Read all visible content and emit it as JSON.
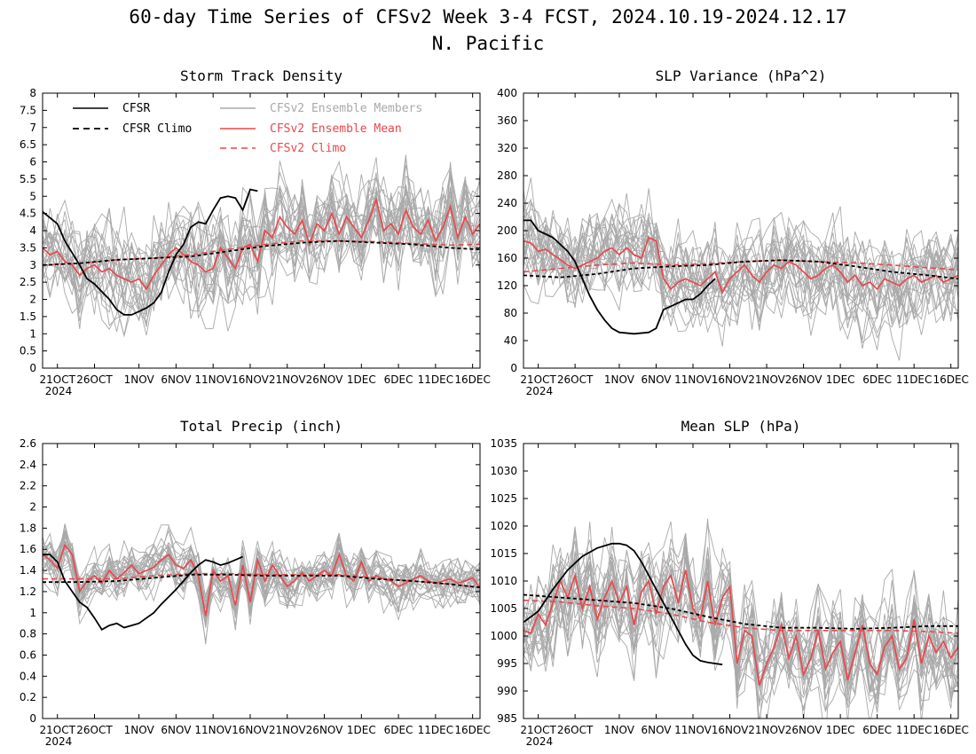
{
  "figure": {
    "title_line1": "60-day Time Series of CFSv2 Week 3-4 FCST, 2024.10.19-2024.12.17",
    "title_line2": "N. Pacific"
  },
  "legend": {
    "cfsr": "CFSR",
    "cfsr_climo": "CFSR Climo",
    "members": "CFSv2 Ensemble Members",
    "ens_mean": "CFSv2 Ensemble Mean",
    "cfsv2_climo": "CFSv2 Climo"
  },
  "colors": {
    "cfsr": "#000000",
    "cfsr_climo": "#000000",
    "members": "#a9a9a9",
    "ens_mean": "#e8484d",
    "cfsv2_climo": "#e8484d"
  },
  "x_axis": {
    "tick_day": [
      2,
      7,
      13,
      18,
      23,
      28,
      33,
      38,
      43,
      48,
      53,
      58
    ],
    "tick_labels": [
      "21OCT",
      "26OCT",
      "1NOV",
      "6NOV",
      "11NOV",
      "16NOV",
      "21NOV",
      "26NOV",
      "1DEC",
      "6DEC",
      "11DEC",
      "16DEC"
    ],
    "year_label": "2024",
    "range": [
      0,
      59
    ]
  },
  "chart_data": [
    {
      "type": "line",
      "title": "Storm Track Density",
      "ylim": [
        0,
        8
      ],
      "yticks": [
        0,
        0.5,
        1,
        1.5,
        2,
        2.5,
        3,
        3.5,
        4,
        4.5,
        5,
        5.5,
        6,
        6.5,
        7,
        7.5,
        8
      ],
      "cfsr": [
        [
          0,
          4.55
        ],
        [
          2,
          4.2
        ],
        [
          3,
          3.7
        ],
        [
          5,
          3.0
        ],
        [
          6,
          2.6
        ],
        [
          7,
          2.45
        ],
        [
          9,
          2.0
        ],
        [
          10,
          1.7
        ],
        [
          11,
          1.55
        ],
        [
          12,
          1.55
        ],
        [
          14,
          1.75
        ],
        [
          15,
          1.9
        ],
        [
          16,
          2.2
        ],
        [
          17,
          2.8
        ],
        [
          18,
          3.3
        ],
        [
          19,
          3.6
        ],
        [
          20,
          4.1
        ],
        [
          21,
          4.25
        ],
        [
          22,
          4.2
        ],
        [
          23,
          4.6
        ],
        [
          24,
          4.95
        ],
        [
          25,
          5.0
        ],
        [
          26,
          4.95
        ],
        [
          27,
          4.6
        ],
        [
          28,
          5.2
        ],
        [
          29,
          5.15
        ]
      ],
      "cfsr_climo": [
        [
          0,
          3.0
        ],
        [
          5,
          3.05
        ],
        [
          10,
          3.15
        ],
        [
          15,
          3.2
        ],
        [
          20,
          3.25
        ],
        [
          25,
          3.4
        ],
        [
          30,
          3.55
        ],
        [
          35,
          3.65
        ],
        [
          40,
          3.7
        ],
        [
          45,
          3.65
        ],
        [
          50,
          3.6
        ],
        [
          55,
          3.5
        ],
        [
          59,
          3.45
        ]
      ],
      "cfsv2_climo": [
        [
          0,
          3.0
        ],
        [
          5,
          3.05
        ],
        [
          10,
          3.15
        ],
        [
          15,
          3.2
        ],
        [
          20,
          3.3
        ],
        [
          25,
          3.45
        ],
        [
          30,
          3.6
        ],
        [
          35,
          3.7
        ],
        [
          40,
          3.7
        ],
        [
          45,
          3.68
        ],
        [
          50,
          3.62
        ],
        [
          55,
          3.58
        ],
        [
          59,
          3.6
        ]
      ],
      "ens_mean": [
        3.5,
        3.3,
        3.4,
        3.1,
        3.0,
        2.7,
        2.9,
        3.0,
        2.8,
        2.9,
        2.7,
        2.6,
        2.5,
        2.6,
        2.3,
        2.7,
        3.0,
        3.3,
        3.5,
        3.3,
        3.1,
        3.0,
        2.8,
        2.9,
        3.5,
        3.2,
        2.9,
        3.5,
        3.6,
        3.1,
        4.0,
        3.8,
        4.4,
        4.1,
        3.9,
        4.3,
        3.6,
        4.2,
        4.0,
        4.5,
        3.9,
        4.4,
        4.1,
        3.8,
        4.3,
        4.9,
        4.0,
        4.2,
        3.9,
        4.6,
        4.1,
        3.9,
        4.3,
        3.7,
        4.1,
        4.7,
        3.8,
        4.4,
        3.9,
        4.2
      ],
      "members": {
        "count": 24,
        "spread": 0.85,
        "seed": 11
      }
    },
    {
      "type": "line",
      "title": "SLP Variance (hPa^2)",
      "ylim": [
        0,
        400
      ],
      "yticks": [
        0,
        40,
        80,
        120,
        160,
        200,
        240,
        280,
        320,
        360,
        400
      ],
      "cfsr": [
        [
          0,
          215
        ],
        [
          1,
          215
        ],
        [
          2,
          200
        ],
        [
          4,
          190
        ],
        [
          5,
          180
        ],
        [
          6,
          170
        ],
        [
          7,
          155
        ],
        [
          8,
          130
        ],
        [
          9,
          105
        ],
        [
          10,
          85
        ],
        [
          11,
          70
        ],
        [
          12,
          58
        ],
        [
          13,
          52
        ],
        [
          15,
          50
        ],
        [
          17,
          52
        ],
        [
          18,
          58
        ],
        [
          19,
          85
        ],
        [
          20,
          90
        ],
        [
          21,
          95
        ],
        [
          22,
          100
        ],
        [
          23,
          100
        ],
        [
          24,
          108
        ],
        [
          25,
          120
        ],
        [
          26,
          130
        ]
      ],
      "cfsr_climo": [
        [
          0,
          135
        ],
        [
          5,
          132
        ],
        [
          10,
          137
        ],
        [
          15,
          145
        ],
        [
          20,
          148
        ],
        [
          25,
          150
        ],
        [
          30,
          155
        ],
        [
          35,
          157
        ],
        [
          40,
          155
        ],
        [
          45,
          148
        ],
        [
          50,
          140
        ],
        [
          55,
          135
        ],
        [
          59,
          130
        ]
      ],
      "cfsv2_climo": [
        [
          0,
          140
        ],
        [
          5,
          145
        ],
        [
          10,
          150
        ],
        [
          15,
          153
        ],
        [
          20,
          150
        ],
        [
          25,
          152
        ],
        [
          30,
          155
        ],
        [
          35,
          157
        ],
        [
          40,
          155
        ],
        [
          45,
          153
        ],
        [
          50,
          150
        ],
        [
          55,
          146
        ],
        [
          59,
          143
        ]
      ],
      "ens_mean": [
        185,
        182,
        170,
        173,
        165,
        158,
        150,
        145,
        150,
        155,
        160,
        170,
        175,
        165,
        175,
        165,
        160,
        190,
        185,
        130,
        115,
        125,
        130,
        125,
        120,
        130,
        140,
        110,
        130,
        140,
        150,
        135,
        125,
        140,
        150,
        145,
        155,
        150,
        140,
        130,
        135,
        145,
        150,
        140,
        125,
        135,
        120,
        125,
        115,
        130,
        125,
        120,
        130,
        135,
        125,
        130,
        135,
        125,
        130,
        135
      ],
      "members": {
        "count": 24,
        "spread": 40,
        "seed": 23
      }
    },
    {
      "type": "line",
      "title": "Total Precip (inch)",
      "ylim": [
        0,
        2.6
      ],
      "yticks": [
        0,
        0.2,
        0.4,
        0.6,
        0.8,
        1,
        1.2,
        1.4,
        1.6,
        1.8,
        2,
        2.2,
        2.4,
        2.6
      ],
      "cfsr": [
        [
          0,
          1.55
        ],
        [
          1,
          1.55
        ],
        [
          2,
          1.48
        ],
        [
          3,
          1.3
        ],
        [
          4,
          1.2
        ],
        [
          5,
          1.1
        ],
        [
          6,
          1.05
        ],
        [
          7,
          0.95
        ],
        [
          8,
          0.84
        ],
        [
          9,
          0.88
        ],
        [
          10,
          0.9
        ],
        [
          11,
          0.86
        ],
        [
          12,
          0.88
        ],
        [
          13,
          0.9
        ],
        [
          14,
          0.95
        ],
        [
          15,
          1.0
        ],
        [
          16,
          1.08
        ],
        [
          17,
          1.15
        ],
        [
          18,
          1.22
        ],
        [
          19,
          1.3
        ],
        [
          20,
          1.38
        ],
        [
          21,
          1.45
        ],
        [
          22,
          1.5
        ],
        [
          23,
          1.48
        ],
        [
          24,
          1.45
        ],
        [
          25,
          1.47
        ],
        [
          26,
          1.5
        ],
        [
          27,
          1.53
        ]
      ],
      "cfsr_climo": [
        [
          0,
          1.29
        ],
        [
          5,
          1.29
        ],
        [
          10,
          1.3
        ],
        [
          15,
          1.33
        ],
        [
          20,
          1.36
        ],
        [
          25,
          1.36
        ],
        [
          30,
          1.35
        ],
        [
          35,
          1.35
        ],
        [
          40,
          1.35
        ],
        [
          45,
          1.32
        ],
        [
          50,
          1.3
        ],
        [
          55,
          1.27
        ],
        [
          59,
          1.24
        ]
      ],
      "cfsv2_climo": [
        [
          0,
          1.32
        ],
        [
          5,
          1.32
        ],
        [
          10,
          1.32
        ],
        [
          15,
          1.35
        ],
        [
          20,
          1.37
        ],
        [
          25,
          1.37
        ],
        [
          30,
          1.36
        ],
        [
          35,
          1.36
        ],
        [
          40,
          1.36
        ],
        [
          45,
          1.33
        ],
        [
          50,
          1.3
        ],
        [
          55,
          1.27
        ],
        [
          59,
          1.24
        ]
      ],
      "ens_mean": [
        1.55,
        1.5,
        1.42,
        1.64,
        1.55,
        1.2,
        1.3,
        1.35,
        1.28,
        1.4,
        1.32,
        1.38,
        1.45,
        1.37,
        1.4,
        1.43,
        1.5,
        1.55,
        1.45,
        1.42,
        1.5,
        1.35,
        0.97,
        1.4,
        1.3,
        1.35,
        1.07,
        1.45,
        1.1,
        1.5,
        1.3,
        1.45,
        1.35,
        1.25,
        1.3,
        1.38,
        1.3,
        1.35,
        1.4,
        1.35,
        1.55,
        1.35,
        1.3,
        1.48,
        1.3,
        1.35,
        1.32,
        1.3,
        1.25,
        1.28,
        1.32,
        1.35,
        1.3,
        1.28,
        1.3,
        1.32,
        1.28,
        1.3,
        1.33,
        1.24
      ],
      "members": {
        "count": 24,
        "spread": 0.14,
        "seed": 37
      }
    },
    {
      "type": "line",
      "title": "Mean SLP (hPa)",
      "ylim": [
        985,
        1035
      ],
      "yticks": [
        985,
        990,
        995,
        1000,
        1005,
        1010,
        1015,
        1020,
        1025,
        1030,
        1035
      ],
      "cfsr": [
        [
          0,
          1002.5
        ],
        [
          2,
          1004.5
        ],
        [
          4,
          1008.5
        ],
        [
          6,
          1012
        ],
        [
          8,
          1014.5
        ],
        [
          10,
          1016
        ],
        [
          12,
          1016.8
        ],
        [
          13,
          1016.8
        ],
        [
          14,
          1016.5
        ],
        [
          15,
          1015.5
        ],
        [
          16,
          1013.5
        ],
        [
          17,
          1011
        ],
        [
          18,
          1008.5
        ],
        [
          19,
          1006
        ],
        [
          20,
          1003.5
        ],
        [
          21,
          1001
        ],
        [
          22,
          998.5
        ],
        [
          23,
          996.5
        ],
        [
          24,
          995.5
        ],
        [
          25,
          995.2
        ],
        [
          26,
          995
        ],
        [
          27,
          994.8
        ]
      ],
      "cfsr_climo": [
        [
          0,
          1007.5
        ],
        [
          5,
          1007
        ],
        [
          10,
          1006.5
        ],
        [
          15,
          1006
        ],
        [
          20,
          1005
        ],
        [
          25,
          1003.5
        ],
        [
          30,
          1002.2
        ],
        [
          35,
          1001.5
        ],
        [
          40,
          1001.5
        ],
        [
          45,
          1001.3
        ],
        [
          50,
          1001.5
        ],
        [
          55,
          1001.8
        ],
        [
          59,
          1001.8
        ]
      ],
      "cfsv2_climo": [
        [
          0,
          1006.5
        ],
        [
          5,
          1006.2
        ],
        [
          10,
          1005.5
        ],
        [
          15,
          1005
        ],
        [
          20,
          1004
        ],
        [
          25,
          1002.5
        ],
        [
          30,
          1001.5
        ],
        [
          35,
          1001
        ],
        [
          40,
          1001
        ],
        [
          45,
          1001
        ],
        [
          50,
          1001
        ],
        [
          55,
          1000.8
        ],
        [
          59,
          1000.5
        ]
      ],
      "ens_mean": [
        1001,
        1000.5,
        1004,
        1002,
        1006,
        1010,
        1007,
        1011,
        1005,
        1009,
        1003,
        1007,
        1010,
        1006,
        1009,
        1002,
        1008,
        1010,
        1004,
        1009,
        1011,
        1006,
        1012,
        1005,
        1003,
        1010,
        1002,
        1007,
        1009,
        995,
        1001,
        1000,
        991,
        995,
        998,
        1002,
        996,
        1000,
        993,
        996,
        1001,
        994,
        997,
        999,
        992,
        997,
        1002,
        995,
        993,
        998,
        1000,
        994,
        996,
        1003,
        995,
        1000,
        997,
        999,
        996,
        998
      ],
      "members": {
        "count": 24,
        "spread": 5.5,
        "seed": 53
      }
    }
  ]
}
